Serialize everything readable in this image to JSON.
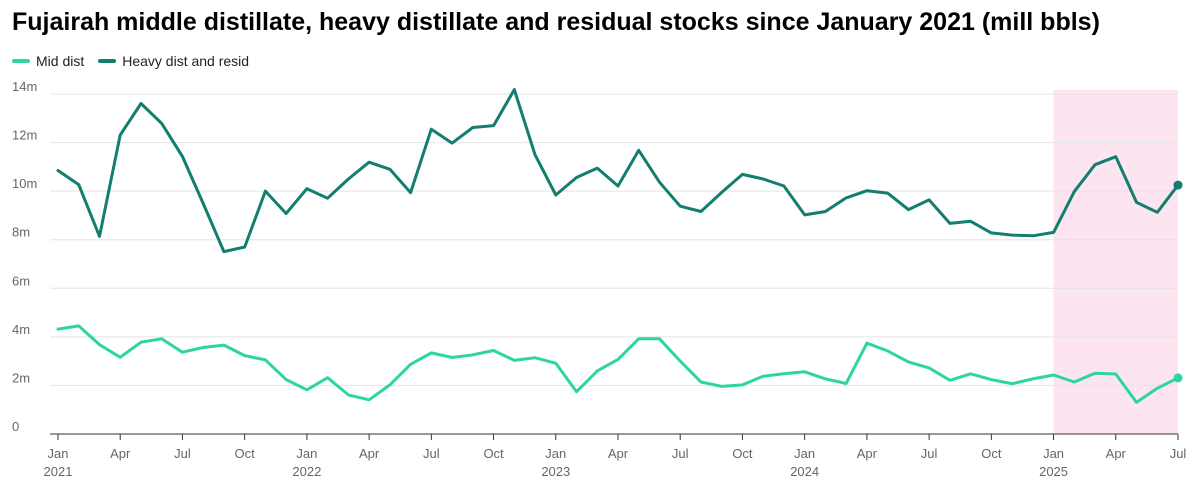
{
  "chart_data": {
    "type": "line",
    "title": "Fujairah middle distillate, heavy distillate and residual stocks since January 2021 (mill bbls)",
    "xlabel": "",
    "ylabel": "",
    "ylim": [
      0,
      14
    ],
    "yticks": [
      0,
      2,
      4,
      6,
      8,
      10,
      12,
      14
    ],
    "ytick_labels": [
      "0",
      "2m",
      "4m",
      "6m",
      "8m",
      "10m",
      "12m",
      "14m"
    ],
    "xticks": [
      {
        "month": 0,
        "label": "Jan",
        "year": "2021"
      },
      {
        "month": 3,
        "label": "Apr",
        "year": ""
      },
      {
        "month": 6,
        "label": "Jul",
        "year": ""
      },
      {
        "month": 9,
        "label": "Oct",
        "year": ""
      },
      {
        "month": 12,
        "label": "Jan",
        "year": "2022"
      },
      {
        "month": 15,
        "label": "Apr",
        "year": ""
      },
      {
        "month": 18,
        "label": "Jul",
        "year": ""
      },
      {
        "month": 21,
        "label": "Oct",
        "year": ""
      },
      {
        "month": 24,
        "label": "Jan",
        "year": "2023"
      },
      {
        "month": 27,
        "label": "Apr",
        "year": ""
      },
      {
        "month": 30,
        "label": "Jul",
        "year": ""
      },
      {
        "month": 33,
        "label": "Oct",
        "year": ""
      },
      {
        "month": 36,
        "label": "Jan",
        "year": "2024"
      },
      {
        "month": 39,
        "label": "Apr",
        "year": ""
      },
      {
        "month": 42,
        "label": "Jul",
        "year": ""
      },
      {
        "month": 45,
        "label": "Oct",
        "year": ""
      },
      {
        "month": 48,
        "label": "Jan",
        "year": "2025"
      },
      {
        "month": 51,
        "label": "Apr",
        "year": ""
      },
      {
        "month": 54,
        "label": "Jul",
        "year": ""
      }
    ],
    "highlight": {
      "from_month": 48,
      "to_month": 54,
      "color": "#fce4f0"
    },
    "grid": true,
    "legend_position": "top-left",
    "series": [
      {
        "name": "Mid dist",
        "color": "#2dd4a4",
        "values": [
          4.32,
          4.45,
          3.68,
          3.16,
          3.78,
          3.92,
          3.37,
          3.56,
          3.66,
          3.23,
          3.05,
          2.24,
          1.82,
          2.32,
          1.61,
          1.41,
          2.02,
          2.87,
          3.34,
          3.15,
          3.26,
          3.44,
          3.03,
          3.14,
          2.91,
          1.74,
          2.6,
          3.07,
          3.92,
          3.92,
          3.0,
          2.14,
          1.96,
          2.02,
          2.38,
          2.48,
          2.56,
          2.27,
          2.08,
          3.74,
          3.42,
          2.97,
          2.72,
          2.21,
          2.48,
          2.24,
          2.07,
          2.27,
          2.43,
          2.14,
          2.5,
          2.47,
          1.3,
          1.88,
          2.31
        ]
      },
      {
        "name": "Heavy dist and resid",
        "color": "#127e6e",
        "values": [
          10.85,
          10.27,
          8.14,
          12.31,
          13.61,
          12.79,
          11.43,
          9.49,
          7.51,
          7.7,
          10.0,
          9.08,
          10.1,
          9.71,
          10.5,
          11.19,
          10.9,
          9.94,
          12.55,
          11.98,
          12.62,
          12.7,
          14.18,
          11.5,
          9.84,
          10.56,
          10.95,
          10.21,
          11.68,
          10.37,
          9.38,
          9.16,
          9.95,
          10.69,
          10.5,
          10.21,
          9.02,
          9.16,
          9.72,
          10.02,
          9.92,
          9.24,
          9.64,
          8.67,
          8.76,
          8.28,
          8.19,
          8.16,
          8.3,
          9.98,
          11.09,
          11.42,
          9.54,
          9.13,
          10.25
        ]
      }
    ]
  }
}
